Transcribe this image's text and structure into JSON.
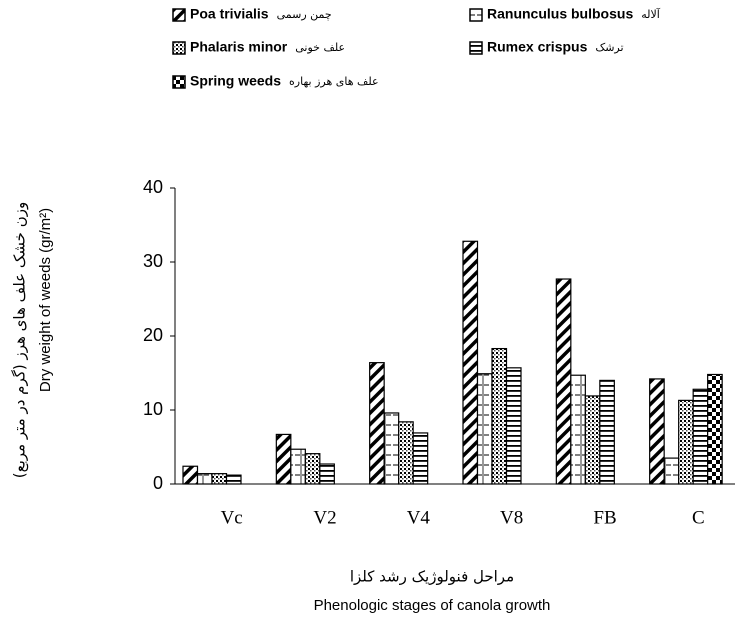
{
  "chart_data": {
    "type": "bar",
    "y_label_fa": "وزن خشک علف های هرز (گرم در متر مربع)",
    "y_label": "Dry weight of weeds (gr/m²)",
    "x_label_fa": "مراحل فنولوژیک رشد کلزا",
    "x_label": "Phenologic stages of canola growth",
    "categories": [
      "Vc",
      "V2",
      "V4",
      "V8",
      "FB",
      "C"
    ],
    "series": [
      {
        "name": "Poa trivialis",
        "name_fa": "چمن رسمی",
        "color": "#000000",
        "pattern": "diagonal",
        "values": [
          2.4,
          6.7,
          16.4,
          32.8,
          27.7,
          14.2
        ]
      },
      {
        "name": "Ranunculus bulbosus",
        "name_fa": "آلاله",
        "color": "#000000",
        "pattern": "dashed",
        "values": [
          1.4,
          4.7,
          9.6,
          14.9,
          14.7,
          3.5
        ]
      },
      {
        "name": "Phalaris minor",
        "name_fa": "علف خونی",
        "color": "#000000",
        "pattern": "dots",
        "values": [
          1.4,
          4.1,
          8.4,
          18.3,
          11.9,
          11.3
        ]
      },
      {
        "name": "Rumex crispus",
        "name_fa": "ترشک",
        "color": "#000000",
        "pattern": "horizontal",
        "values": [
          1.2,
          2.7,
          6.9,
          15.7,
          14.0,
          12.8
        ]
      },
      {
        "name": "Spring weeds",
        "name_fa": "علف های هرز بهاره",
        "color": "#000000",
        "pattern": "checker",
        "values": [
          null,
          null,
          null,
          null,
          null,
          14.8
        ]
      }
    ],
    "ylim": [
      0,
      40
    ],
    "yticks": [
      0,
      10,
      20,
      30,
      40
    ],
    "grid": false
  }
}
